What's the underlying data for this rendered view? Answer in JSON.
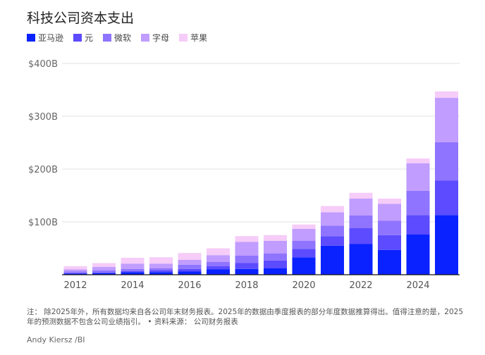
{
  "chart_data": {
    "type": "bar",
    "stacked": true,
    "title": "科技公司资本支出",
    "categories": [
      "2012",
      "2013",
      "2014",
      "2015",
      "2016",
      "2017",
      "2018",
      "2019",
      "2020",
      "2021",
      "2022",
      "2023",
      "2024",
      "2025"
    ],
    "x_tick_labels": [
      "2012",
      "2014",
      "2016",
      "2018",
      "2020",
      "2022",
      "2024"
    ],
    "y_tick_labels": [
      "$100B",
      "$200B",
      "$300B",
      "$400B"
    ],
    "ylim": [
      0,
      400
    ],
    "grid": true,
    "legend_position": "top-left",
    "series": [
      {
        "name": "亚马逊",
        "color": "#0a22ff",
        "values": [
          2,
          3,
          5,
          5,
          6,
          10,
          11,
          12,
          33,
          55,
          58,
          47,
          76,
          113
        ]
      },
      {
        "name": "元",
        "color": "#5c4bff",
        "values": [
          1,
          1,
          2,
          3,
          5,
          6,
          11,
          15,
          16,
          18,
          30,
          28,
          37,
          65
        ]
      },
      {
        "name": "微软",
        "color": "#8f74ff",
        "values": [
          3,
          4,
          4,
          4,
          8,
          8,
          14,
          13,
          15,
          20,
          24,
          27,
          46,
          73
        ]
      },
      {
        "name": "字母",
        "color": "#c09dff",
        "values": [
          4,
          7,
          10,
          9,
          9,
          13,
          26,
          24,
          23,
          25,
          32,
          32,
          52,
          84
        ]
      },
      {
        "name": "苹果",
        "color": "#f6ccf8",
        "values": [
          6,
          7,
          11,
          12,
          13,
          13,
          11,
          11,
          8,
          12,
          11,
          10,
          9,
          12
        ]
      }
    ]
  },
  "footer": {
    "note": "注： 除2025年外，所有数据均来自各公司年末财务报表。2025年的数据由季度报表的部分年度数据推算得出。值得注意的是，2025年的预测数据不包含公司业绩指引。 • 资料来源： 公司财务报表",
    "credit": "Andy Kiersz /BI"
  }
}
